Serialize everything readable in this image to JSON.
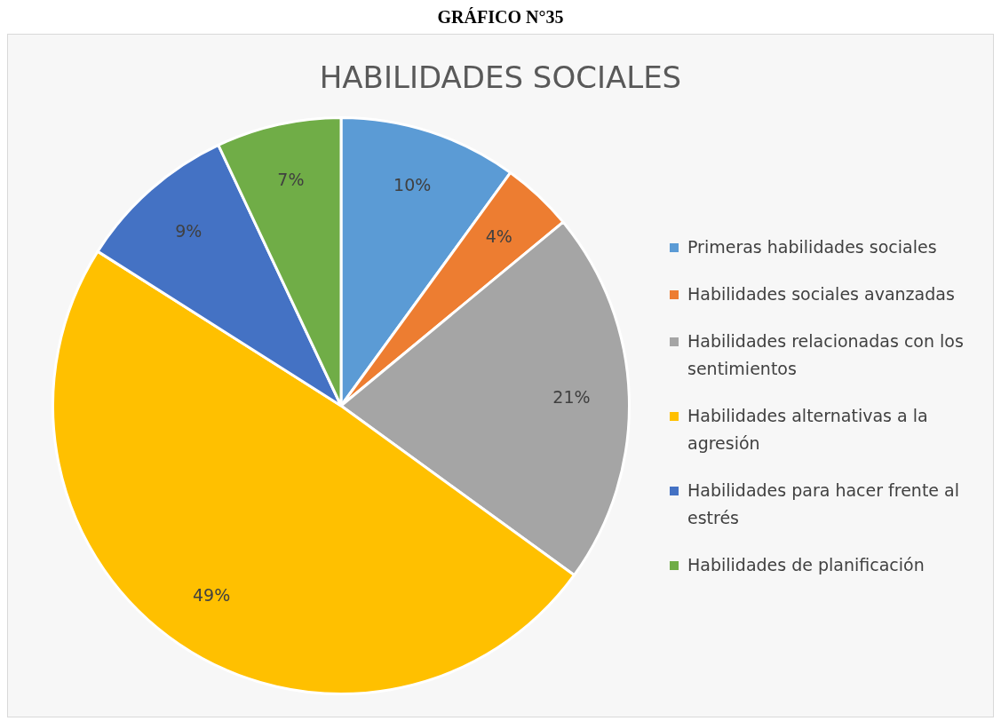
{
  "chart_data": {
    "type": "pie",
    "title": "GRÁFICO N°35",
    "subtitle": "HABILIDADES SOCIALES",
    "categories": [
      "Primeras habilidades sociales",
      "Habilidades sociales avanzadas",
      "Habilidades relacionadas con los sentimientos",
      "Habilidades alternativas a la agresión",
      "Habilidades para hacer frente al estrés",
      "Habilidades de planificación"
    ],
    "values": [
      10,
      4,
      21,
      49,
      9,
      7
    ],
    "colors": [
      "#5b9bd5",
      "#ed7d31",
      "#a5a5a5",
      "#ffc000",
      "#4472c4",
      "#70ad47"
    ],
    "value_labels": [
      "10%",
      "4%",
      "21%",
      "49%",
      "9%",
      "7%"
    ],
    "legend": "right"
  }
}
